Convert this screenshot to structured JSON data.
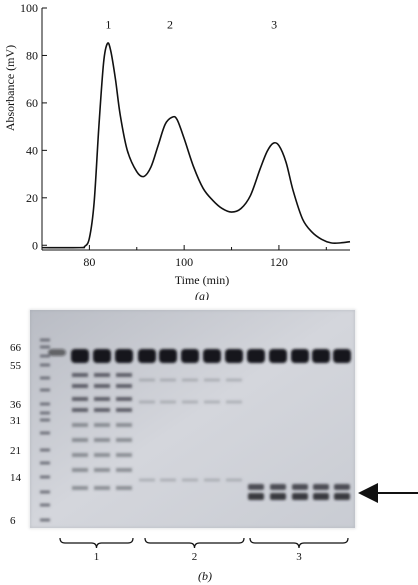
{
  "chart_data": {
    "type": "line",
    "title": "",
    "xlabel": "Time (min)",
    "ylabel": "Absorbance (mV)",
    "xlim": [
      70,
      135
    ],
    "ylim": [
      -2,
      100
    ],
    "xticks": [
      80,
      100,
      120
    ],
    "yticks": [
      0,
      20,
      40,
      60,
      80,
      100
    ],
    "grid": false,
    "legend": "none",
    "series": [
      {
        "x": [
          70,
          78,
          79,
          80,
          81,
          82,
          83,
          83.8,
          84.5,
          85.5,
          86.5,
          88,
          90,
          91.5,
          93,
          94.5,
          96,
          97.5,
          98.5,
          100,
          102,
          104,
          106,
          108,
          110,
          112,
          114,
          116,
          117.5,
          118.8,
          120,
          121.5,
          123,
          125,
          127,
          129,
          131,
          133,
          135
        ],
        "values": [
          -1,
          -1,
          -0.5,
          3,
          18,
          50,
          77,
          85,
          82,
          70,
          55,
          40,
          31,
          29,
          33,
          42,
          51,
          54,
          53,
          45,
          33,
          24,
          19,
          15.5,
          14,
          15.5,
          21,
          32,
          39.5,
          43,
          42,
          35,
          23,
          11,
          5.5,
          2.5,
          1,
          1,
          1.5
        ]
      }
    ],
    "peak_labels": [
      {
        "text": "1",
        "x": 84,
        "y": 93
      },
      {
        "text": "2",
        "x": 97,
        "y": 93
      },
      {
        "text": "3",
        "x": 119,
        "y": 93
      }
    ],
    "caption": "(a)"
  },
  "gel": {
    "markers": [
      "66",
      "55",
      "36",
      "31",
      "21",
      "14",
      "6"
    ],
    "groups": [
      "1",
      "2",
      "3"
    ],
    "caption": "(b)"
  }
}
